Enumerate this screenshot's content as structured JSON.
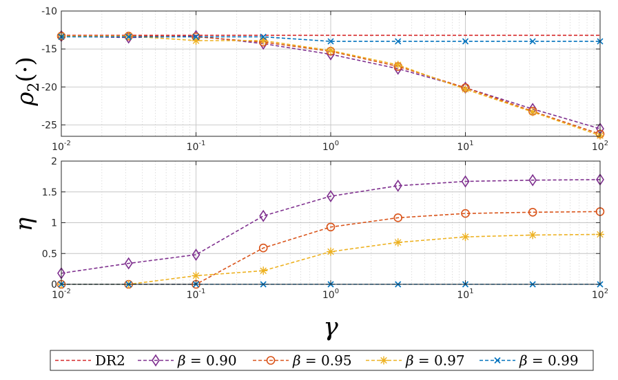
{
  "chart_data": {
    "type": "line",
    "x": [
      0.01,
      0.0316,
      0.1,
      0.316,
      1,
      3.16,
      10,
      31.6,
      100
    ],
    "xlabel": "γ",
    "xscale": "log",
    "xlim": [
      0.01,
      100
    ],
    "xtick_labels": [
      "10",
      "10",
      "10",
      "10",
      "10"
    ],
    "xtick_exponents": [
      "-2",
      "-1",
      "0",
      "1",
      "2"
    ],
    "legend_location": "bottom-outside",
    "legend": [
      {
        "key": "dr2",
        "label": "DR2",
        "color": "#d62728",
        "marker": "none"
      },
      {
        "key": "b090",
        "label_var": "β",
        "label_val": " = 0.90",
        "color": "#7e2f8e",
        "marker": "diamond"
      },
      {
        "key": "b095",
        "label_var": "β",
        "label_val": " = 0.95",
        "color": "#d95319",
        "marker": "circle"
      },
      {
        "key": "b097",
        "label_var": "β",
        "label_val": " = 0.97",
        "color": "#edb120",
        "marker": "asterisk"
      },
      {
        "key": "b099",
        "label_var": "β",
        "label_val": " = 0.99",
        "color": "#0072bd",
        "marker": "x"
      }
    ],
    "panels": [
      {
        "ylabel_main": "ρ",
        "ylabel_sub": "2",
        "ylabel_tail": "(·)",
        "ylim": [
          -26.5,
          -10
        ],
        "yticks": [
          -10,
          -15,
          -20,
          -25
        ],
        "ytick_labels": [
          "-10",
          "-15",
          "-20",
          "-25"
        ],
        "grid": true,
        "series": [
          {
            "key": "dr2",
            "values": [
              -13.2,
              -13.2,
              -13.2,
              -13.2,
              -13.2,
              -13.2,
              -13.2,
              -13.2,
              -13.2
            ]
          },
          {
            "key": "b090",
            "values": [
              -13.3,
              -13.5,
              -13.3,
              -14.3,
              -15.7,
              -17.6,
              -20.1,
              -22.9,
              -25.5
            ]
          },
          {
            "key": "b095",
            "values": [
              -13.3,
              -13.3,
              -13.4,
              -14.1,
              -15.3,
              -17.3,
              -20.1,
              -23.2,
              -26.2
            ]
          },
          {
            "key": "b097",
            "values": [
              -13.3,
              -13.3,
              -13.9,
              -13.9,
              -15.2,
              -17.1,
              -20.3,
              -23.3,
              -26.4
            ]
          },
          {
            "key": "b099",
            "values": [
              -13.4,
              -13.4,
              -13.4,
              -13.4,
              -14.0,
              -14.0,
              -14.0,
              -14.0,
              -14.0
            ]
          }
        ]
      },
      {
        "ylabel_main": "η",
        "ylim": [
          0,
          2
        ],
        "yticks": [
          0,
          0.5,
          1,
          1.5,
          2
        ],
        "ytick_labels": [
          "0",
          "0.5",
          "1",
          "1.5",
          "2"
        ],
        "grid": true,
        "series": [
          {
            "key": "b090",
            "values": [
              0.18,
              0.34,
              0.48,
              1.11,
              1.43,
              1.6,
              1.67,
              1.69,
              1.7
            ]
          },
          {
            "key": "b095",
            "values": [
              0.0,
              0.0,
              0.0,
              0.59,
              0.93,
              1.08,
              1.15,
              1.17,
              1.18
            ]
          },
          {
            "key": "b097",
            "values": [
              0.0,
              0.0,
              0.14,
              0.22,
              0.53,
              0.68,
              0.77,
              0.8,
              0.81
            ]
          },
          {
            "key": "b099",
            "values": [
              0.0,
              0.0,
              0.0,
              0.0,
              0.0,
              0.0,
              0.0,
              0.0,
              0.0
            ]
          }
        ]
      }
    ]
  }
}
